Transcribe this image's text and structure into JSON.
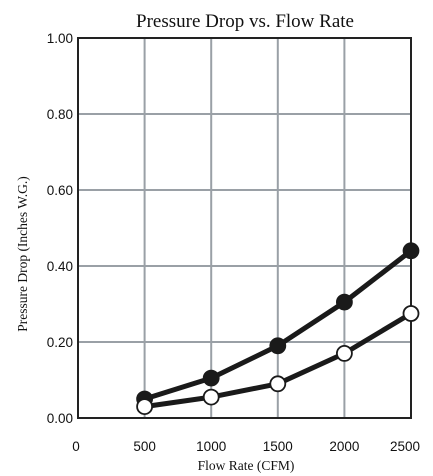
{
  "chart_data": {
    "type": "line",
    "title": "Pressure Drop vs. Flow Rate",
    "xlabel": "Flow Rate (CFM)",
    "ylabel": "Pressure Drop (Inches W.G.)",
    "x_ticks": [
      "0",
      "500",
      "1000",
      "1500",
      "2000",
      "2500"
    ],
    "y_ticks": [
      "0.00",
      "0.20",
      "0.40",
      "0.60",
      "0.80",
      "1.00"
    ],
    "xlim": [
      0,
      2500
    ],
    "ylim": [
      0,
      1.0
    ],
    "grid": true,
    "x": [
      500,
      1000,
      1500,
      2000,
      2500
    ],
    "series": [
      {
        "marker": "filled-circle",
        "color": "#1a1a1a",
        "values": [
          0.05,
          0.105,
          0.19,
          0.305,
          0.44
        ]
      },
      {
        "marker": "open-circle",
        "color": "#1a1a1a",
        "values": [
          0.03,
          0.055,
          0.09,
          0.17,
          0.275
        ]
      }
    ]
  }
}
